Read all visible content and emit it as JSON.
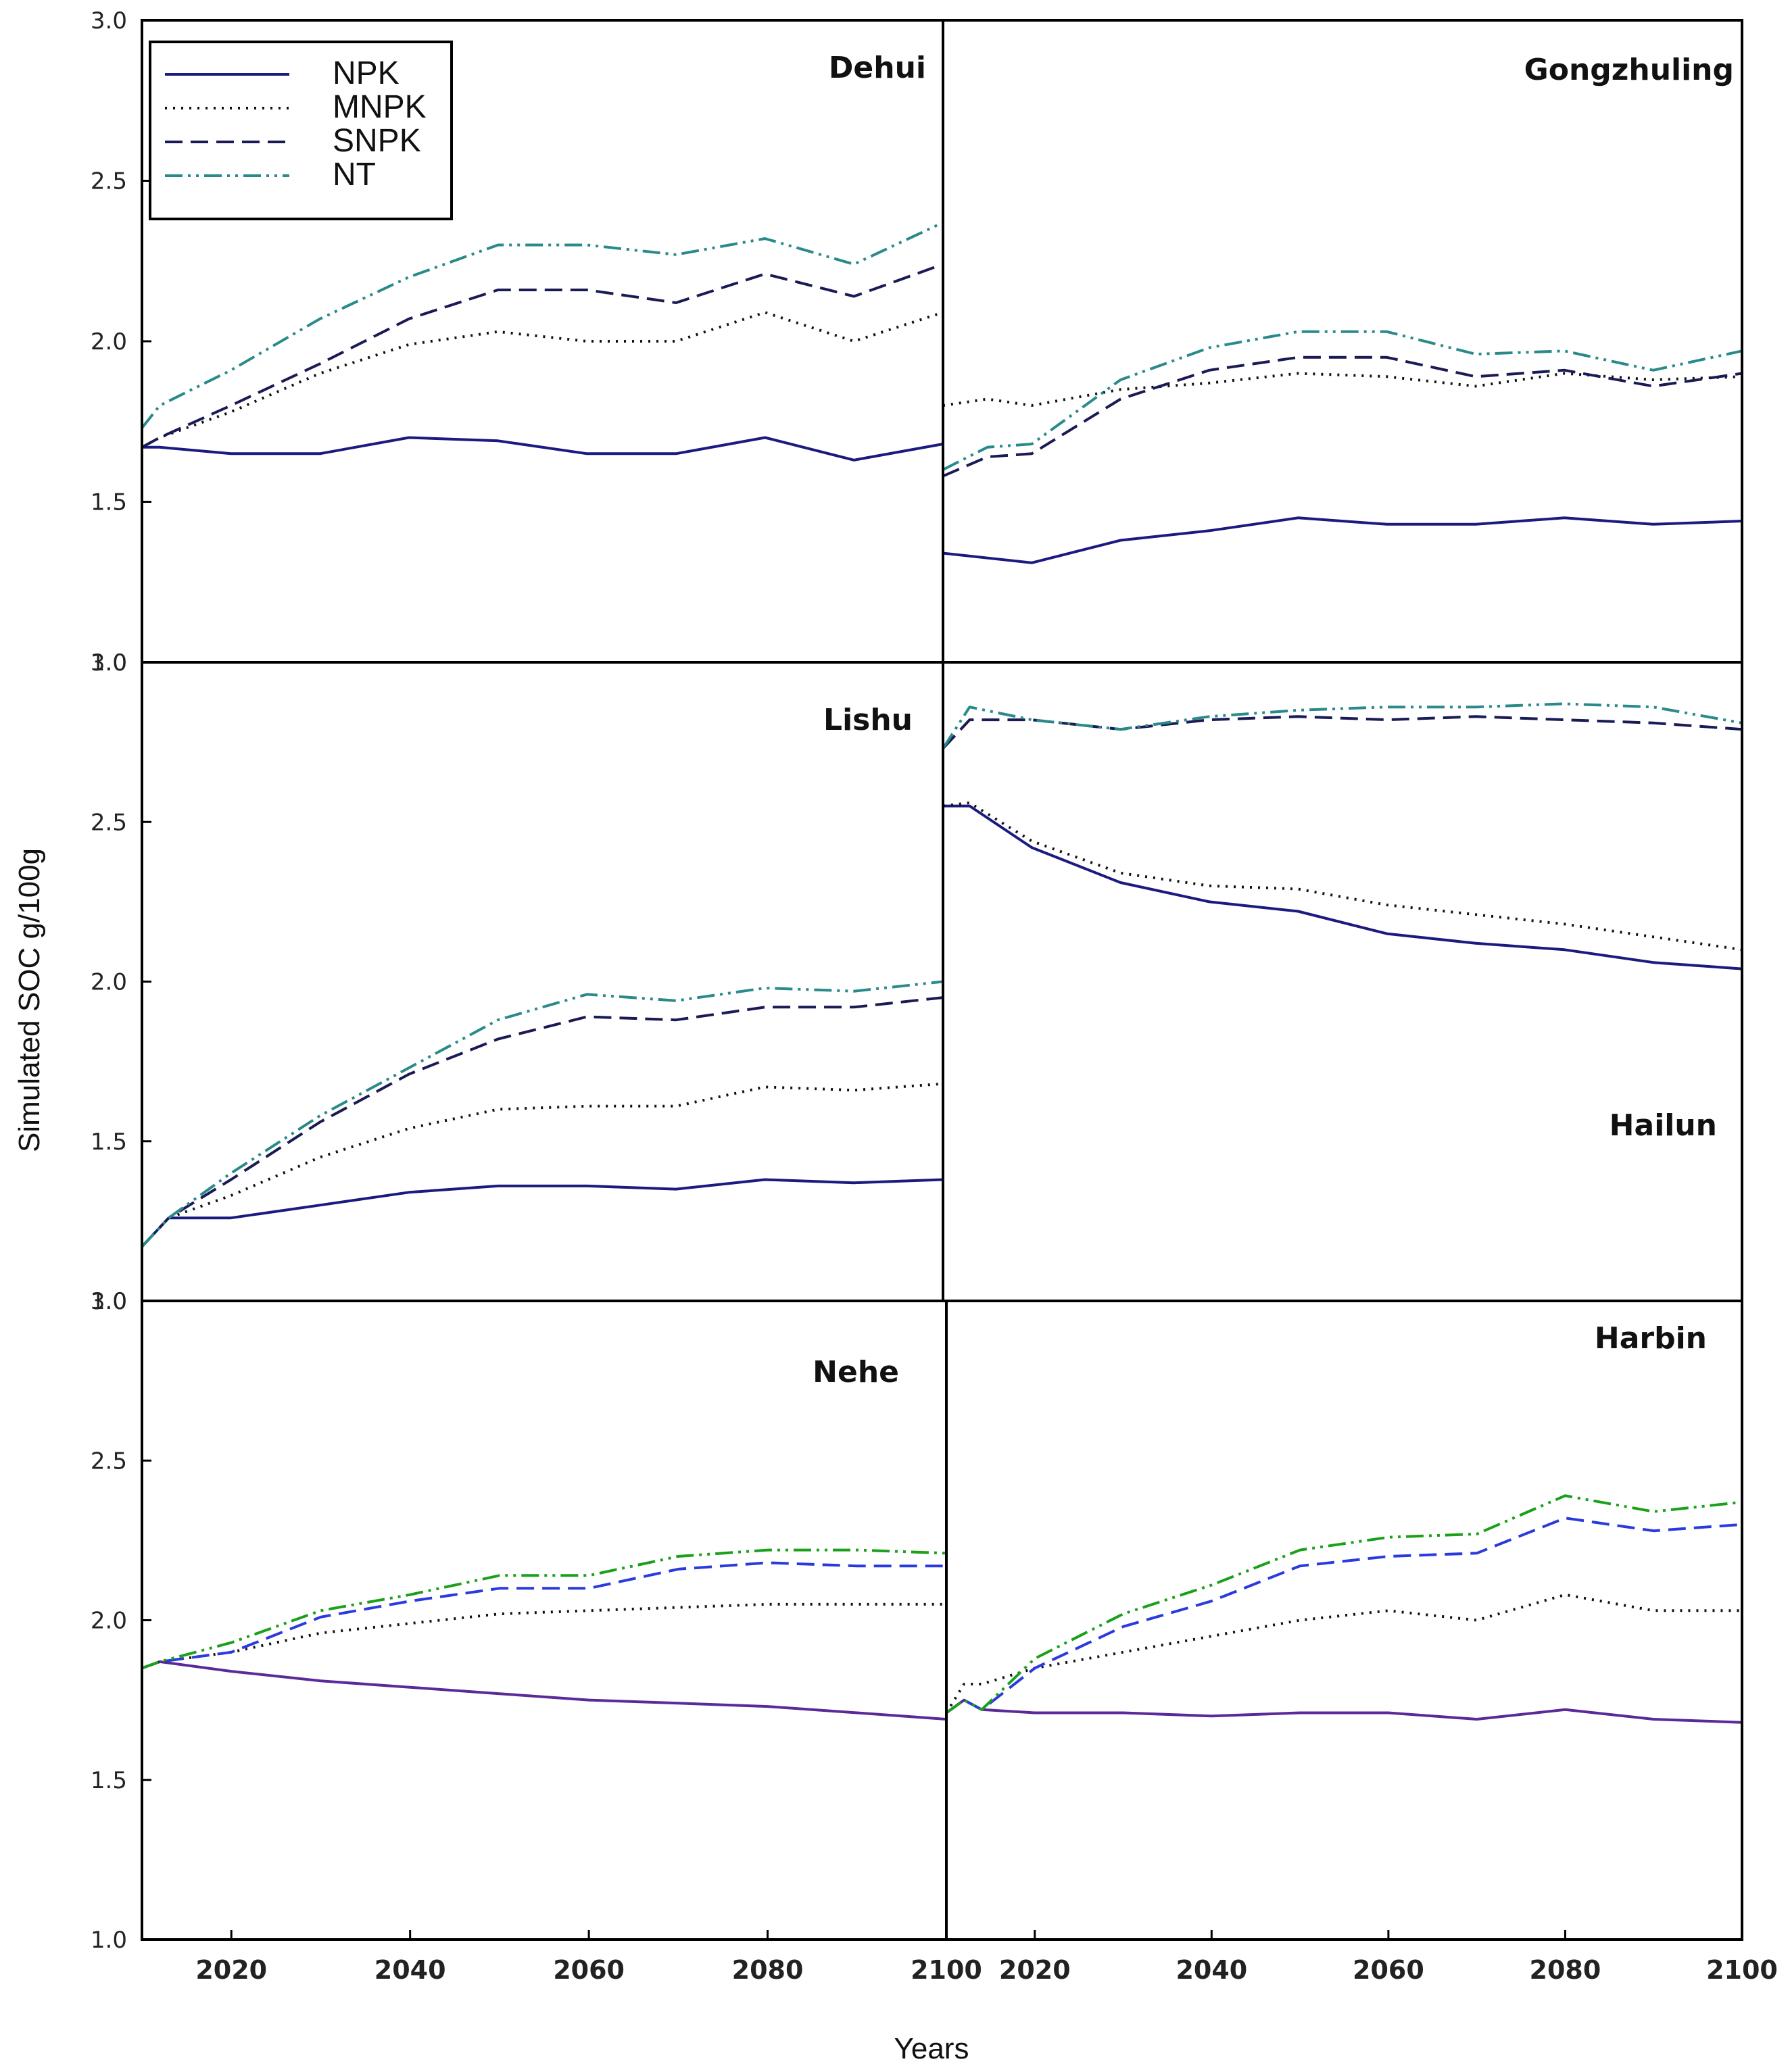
{
  "chart_data": {
    "type": "line",
    "ylabel": "Simulated SOC g/100g",
    "xlabel": "Years",
    "xlim": [
      2010,
      2100
    ],
    "ylim": [
      1.0,
      3.0
    ],
    "xticks": [
      2020,
      2040,
      2060,
      2080,
      2100
    ],
    "yticks": [
      1.0,
      1.5,
      2.0,
      2.5,
      3.0
    ],
    "xtick_labels_left": [
      "2020",
      "2040",
      "2060",
      "2080",
      "2100"
    ],
    "xtick_labels_right": [
      "2020",
      "2040",
      "2060",
      "2080",
      "2100"
    ],
    "ytick_labels": [
      "1.0",
      "1.5",
      "2.0",
      "2.5",
      "3.0"
    ],
    "legend": {
      "position": "top-left of Dehui panel",
      "entries": [
        {
          "name": "NPK",
          "style": "solid"
        },
        {
          "name": "MNPK",
          "style": "dotted"
        },
        {
          "name": "SNPK",
          "style": "dashed"
        },
        {
          "name": "NT",
          "style": "dash-dot-dot"
        }
      ]
    },
    "colors": {
      "NPK": "#1a1a80",
      "MNPK": "#111111",
      "SNPK": "#1a1a55",
      "NT": "#2a8a8a",
      "NPK_b": "#5a2a9a",
      "SNPK_b": "#2a3adf",
      "NT_b": "#1aa01a"
    },
    "panels": [
      {
        "title": "Dehui",
        "series": [
          {
            "name": "NPK",
            "x": [
              2010,
              2012,
              2020,
              2030,
              2040,
              2050,
              2060,
              2070,
              2080,
              2090,
              2100
            ],
            "y": [
              1.67,
              1.67,
              1.65,
              1.65,
              1.7,
              1.69,
              1.65,
              1.65,
              1.7,
              1.63,
              1.68
            ]
          },
          {
            "name": "MNPK",
            "x": [
              2010,
              2012,
              2020,
              2030,
              2040,
              2050,
              2060,
              2070,
              2080,
              2090,
              2100
            ],
            "y": [
              1.67,
              1.7,
              1.78,
              1.9,
              1.99,
              2.03,
              2.0,
              2.0,
              2.09,
              2.0,
              2.09
            ]
          },
          {
            "name": "SNPK",
            "x": [
              2010,
              2012,
              2020,
              2030,
              2040,
              2050,
              2060,
              2070,
              2080,
              2090,
              2100
            ],
            "y": [
              1.67,
              1.7,
              1.8,
              1.93,
              2.07,
              2.16,
              2.16,
              2.12,
              2.21,
              2.14,
              2.24
            ]
          },
          {
            "name": "NT",
            "x": [
              2010,
              2012,
              2020,
              2030,
              2040,
              2050,
              2060,
              2070,
              2080,
              2090,
              2100
            ],
            "y": [
              1.73,
              1.8,
              1.91,
              2.07,
              2.2,
              2.3,
              2.3,
              2.27,
              2.32,
              2.24,
              2.37
            ]
          }
        ]
      },
      {
        "title": "Gongzhuling",
        "series": [
          {
            "name": "NPK",
            "x": [
              2010,
              2020,
              2030,
              2040,
              2050,
              2060,
              2070,
              2080,
              2090,
              2100
            ],
            "y": [
              1.34,
              1.31,
              1.38,
              1.41,
              1.45,
              1.43,
              1.43,
              1.45,
              1.43,
              1.44
            ]
          },
          {
            "name": "MNPK",
            "x": [
              2010,
              2015,
              2020,
              2030,
              2040,
              2050,
              2060,
              2070,
              2080,
              2090,
              2100
            ],
            "y": [
              1.8,
              1.82,
              1.8,
              1.85,
              1.87,
              1.9,
              1.89,
              1.86,
              1.9,
              1.88,
              1.89
            ]
          },
          {
            "name": "SNPK",
            "x": [
              2010,
              2015,
              2020,
              2030,
              2040,
              2050,
              2060,
              2070,
              2080,
              2090,
              2100
            ],
            "y": [
              1.58,
              1.64,
              1.65,
              1.82,
              1.91,
              1.95,
              1.95,
              1.89,
              1.91,
              1.86,
              1.9
            ]
          },
          {
            "name": "NT",
            "x": [
              2010,
              2015,
              2020,
              2030,
              2040,
              2050,
              2060,
              2070,
              2080,
              2090,
              2100
            ],
            "y": [
              1.6,
              1.67,
              1.68,
              1.88,
              1.98,
              2.03,
              2.03,
              1.96,
              1.97,
              1.91,
              1.97
            ]
          }
        ]
      },
      {
        "title": "Lishu",
        "series": [
          {
            "name": "NPK",
            "x": [
              2010,
              2013,
              2020,
              2030,
              2040,
              2050,
              2060,
              2070,
              2080,
              2090,
              2100
            ],
            "y": [
              1.17,
              1.26,
              1.26,
              1.3,
              1.34,
              1.36,
              1.36,
              1.35,
              1.38,
              1.37,
              1.38
            ]
          },
          {
            "name": "MNPK",
            "x": [
              2010,
              2013,
              2020,
              2030,
              2040,
              2050,
              2060,
              2070,
              2080,
              2090,
              2100
            ],
            "y": [
              1.17,
              1.26,
              1.33,
              1.45,
              1.54,
              1.6,
              1.61,
              1.61,
              1.67,
              1.66,
              1.68
            ]
          },
          {
            "name": "SNPK",
            "x": [
              2010,
              2013,
              2020,
              2030,
              2040,
              2050,
              2060,
              2070,
              2080,
              2090,
              2100
            ],
            "y": [
              1.17,
              1.26,
              1.38,
              1.56,
              1.71,
              1.82,
              1.89,
              1.88,
              1.92,
              1.92,
              1.95
            ]
          },
          {
            "name": "NT",
            "x": [
              2010,
              2013,
              2020,
              2030,
              2040,
              2050,
              2060,
              2070,
              2080,
              2090,
              2100
            ],
            "y": [
              1.17,
              1.26,
              1.4,
              1.58,
              1.73,
              1.88,
              1.96,
              1.94,
              1.98,
              1.97,
              2.0
            ]
          }
        ]
      },
      {
        "title": "Hailun",
        "series": [
          {
            "name": "NPK",
            "x": [
              2010,
              2013,
              2020,
              2030,
              2040,
              2050,
              2060,
              2070,
              2080,
              2090,
              2100
            ],
            "y": [
              2.55,
              2.55,
              2.42,
              2.31,
              2.25,
              2.22,
              2.15,
              2.12,
              2.1,
              2.06,
              2.04
            ]
          },
          {
            "name": "MNPK",
            "x": [
              2010,
              2013,
              2020,
              2030,
              2040,
              2050,
              2060,
              2070,
              2080,
              2090,
              2100
            ],
            "y": [
              2.55,
              2.56,
              2.44,
              2.34,
              2.3,
              2.29,
              2.24,
              2.21,
              2.18,
              2.14,
              2.1
            ]
          },
          {
            "name": "SNPK",
            "x": [
              2010,
              2013,
              2020,
              2030,
              2040,
              2050,
              2060,
              2070,
              2080,
              2090,
              2100
            ],
            "y": [
              2.73,
              2.82,
              2.82,
              2.79,
              2.82,
              2.83,
              2.82,
              2.83,
              2.82,
              2.81,
              2.79
            ]
          },
          {
            "name": "NT",
            "x": [
              2010,
              2013,
              2020,
              2030,
              2040,
              2050,
              2060,
              2070,
              2080,
              2090,
              2100
            ],
            "y": [
              2.73,
              2.86,
              2.82,
              2.79,
              2.83,
              2.85,
              2.86,
              2.86,
              2.87,
              2.86,
              2.81
            ]
          }
        ]
      },
      {
        "title": "Nehe",
        "series": [
          {
            "name": "NPK",
            "x": [
              2010,
              2012,
              2020,
              2030,
              2040,
              2050,
              2060,
              2070,
              2080,
              2090,
              2100
            ],
            "y": [
              1.85,
              1.87,
              1.84,
              1.81,
              1.79,
              1.77,
              1.75,
              1.74,
              1.73,
              1.71,
              1.69
            ]
          },
          {
            "name": "MNPK",
            "x": [
              2010,
              2012,
              2020,
              2030,
              2040,
              2050,
              2060,
              2070,
              2080,
              2090,
              2100
            ],
            "y": [
              1.85,
              1.87,
              1.9,
              1.96,
              1.99,
              2.02,
              2.03,
              2.04,
              2.05,
              2.05,
              2.05
            ]
          },
          {
            "name": "SNPK",
            "x": [
              2010,
              2012,
              2020,
              2030,
              2040,
              2050,
              2060,
              2070,
              2080,
              2090,
              2100
            ],
            "y": [
              1.85,
              1.87,
              1.9,
              2.01,
              2.06,
              2.1,
              2.1,
              2.16,
              2.18,
              2.17,
              2.17
            ]
          },
          {
            "name": "NT",
            "x": [
              2010,
              2012,
              2020,
              2030,
              2040,
              2050,
              2060,
              2070,
              2080,
              2090,
              2100
            ],
            "y": [
              1.85,
              1.87,
              1.93,
              2.03,
              2.08,
              2.14,
              2.14,
              2.2,
              2.22,
              2.22,
              2.21
            ]
          }
        ]
      },
      {
        "title": "Harbin",
        "series": [
          {
            "name": "NPK",
            "x": [
              2010,
              2012,
              2014,
              2020,
              2030,
              2040,
              2050,
              2060,
              2070,
              2080,
              2090,
              2100
            ],
            "y": [
              1.71,
              1.75,
              1.72,
              1.71,
              1.71,
              1.7,
              1.71,
              1.71,
              1.69,
              1.72,
              1.69,
              1.68
            ]
          },
          {
            "name": "MNPK",
            "x": [
              2010,
              2012,
              2014,
              2020,
              2030,
              2040,
              2050,
              2060,
              2070,
              2080,
              2090,
              2100
            ],
            "y": [
              1.71,
              1.8,
              1.8,
              1.85,
              1.9,
              1.95,
              2.0,
              2.03,
              2.0,
              2.08,
              2.03,
              2.03
            ]
          },
          {
            "name": "SNPK",
            "x": [
              2010,
              2012,
              2014,
              2020,
              2030,
              2040,
              2050,
              2060,
              2070,
              2080,
              2090,
              2100
            ],
            "y": [
              1.71,
              1.75,
              1.72,
              1.85,
              1.98,
              2.06,
              2.17,
              2.2,
              2.21,
              2.32,
              2.28,
              2.3
            ]
          },
          {
            "name": "NT",
            "x": [
              2010,
              2012,
              2014,
              2020,
              2030,
              2040,
              2050,
              2060,
              2070,
              2080,
              2090,
              2100
            ],
            "y": [
              1.71,
              1.75,
              1.72,
              1.88,
              2.02,
              2.11,
              2.22,
              2.26,
              2.27,
              2.39,
              2.34,
              2.37
            ]
          }
        ]
      }
    ]
  }
}
